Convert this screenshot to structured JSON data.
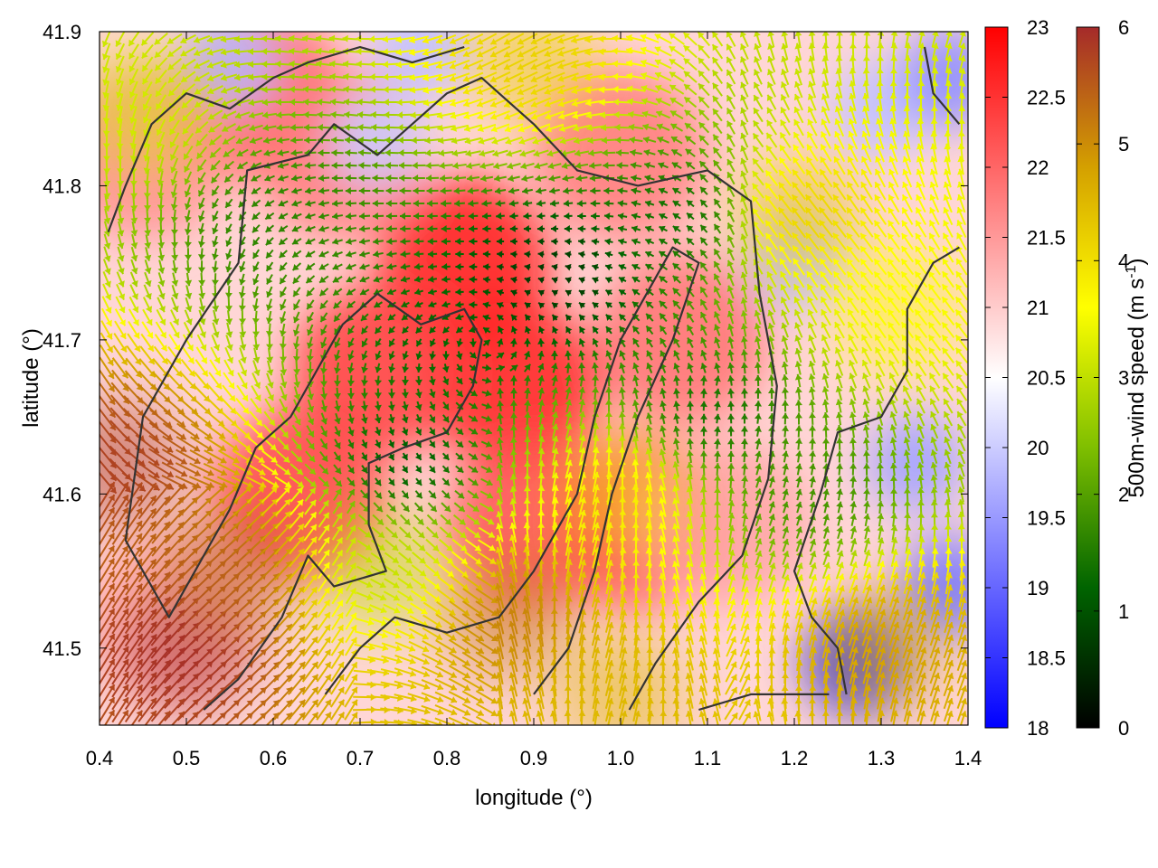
{
  "chart_data": {
    "type": "heatmap",
    "title": "",
    "xlabel": "longitude (°)",
    "ylabel": "latitude (°)",
    "xlim": [
      0.4,
      1.4
    ],
    "ylim": [
      41.45,
      41.9
    ],
    "x_ticks": [
      "0.4",
      "0.5",
      "0.6",
      "0.7",
      "0.8",
      "0.9",
      "1.0",
      "1.1",
      "1.2",
      "1.3",
      "1.4"
    ],
    "y_ticks": [
      "41.5",
      "41.6",
      "41.7",
      "41.8",
      "41.9"
    ],
    "colorbar_temperature": {
      "range": [
        18,
        23
      ],
      "ticks": [
        "18",
        "18.5",
        "19",
        "19.5",
        "20",
        "20.5",
        "21",
        "21.5",
        "22",
        "22.5",
        "23"
      ],
      "colors": [
        "#0000ff",
        "#ffffff",
        "#ff0000"
      ]
    },
    "colorbar_wind": {
      "label_main": "500m-wind speed (m s",
      "label_sup": "-1",
      "label_end": ")",
      "range": [
        0,
        6
      ],
      "ticks": [
        "0",
        "1",
        "2",
        "3",
        "4",
        "5",
        "6"
      ],
      "colors": [
        "#000000",
        "#006400",
        "#7fbf00",
        "#ffff00",
        "#d4a000",
        "#a52a2a"
      ]
    },
    "temperature_hotspots": [
      {
        "lon": 0.82,
        "lat": 41.75,
        "value": 22.8
      },
      {
        "lon": 0.88,
        "lat": 41.67,
        "value": 22.7
      },
      {
        "lon": 0.72,
        "lat": 41.68,
        "value": 22.4
      },
      {
        "lon": 0.63,
        "lat": 41.6,
        "value": 22.3
      },
      {
        "lon": 0.58,
        "lat": 41.86,
        "value": 22.1
      },
      {
        "lon": 0.9,
        "lat": 41.58,
        "value": 22.2
      },
      {
        "lon": 1.02,
        "lat": 41.58,
        "value": 22.2
      },
      {
        "lon": 1.0,
        "lat": 41.82,
        "value": 21.8
      },
      {
        "lon": 1.07,
        "lat": 41.7,
        "value": 21.9
      },
      {
        "lon": 0.45,
        "lat": 41.82,
        "value": 21.6
      },
      {
        "lon": 0.48,
        "lat": 41.52,
        "value": 21.3
      },
      {
        "lon": 1.12,
        "lat": 41.58,
        "value": 21.4
      },
      {
        "lon": 0.68,
        "lat": 41.82,
        "value": 21.8
      }
    ],
    "temperature_coldspots": [
      {
        "lon": 1.27,
        "lat": 41.49,
        "value": 18.6
      },
      {
        "lon": 1.34,
        "lat": 41.62,
        "value": 19.6
      },
      {
        "lon": 1.38,
        "lat": 41.54,
        "value": 19.2
      },
      {
        "lon": 1.2,
        "lat": 41.75,
        "value": 19.9
      },
      {
        "lon": 1.3,
        "lat": 41.85,
        "value": 19.9
      },
      {
        "lon": 0.55,
        "lat": 41.88,
        "value": 19.8
      },
      {
        "lon": 0.77,
        "lat": 41.89,
        "value": 19.9
      },
      {
        "lon": 1.38,
        "lat": 41.87,
        "value": 19.4
      },
      {
        "lon": 0.72,
        "lat": 41.83,
        "value": 20.0
      }
    ],
    "wind_regions": [
      {
        "lon": 0.8,
        "lat": 41.7,
        "speed": 1.2
      },
      {
        "lon": 0.92,
        "lat": 41.74,
        "speed": 0.6
      },
      {
        "lon": 0.75,
        "lat": 41.62,
        "speed": 1.0
      },
      {
        "lon": 0.6,
        "lat": 41.78,
        "speed": 1.6
      },
      {
        "lon": 1.08,
        "lat": 41.78,
        "speed": 1.2
      },
      {
        "lon": 1.1,
        "lat": 41.65,
        "speed": 1.3
      },
      {
        "lon": 1.22,
        "lat": 41.6,
        "speed": 1.8
      },
      {
        "lon": 0.5,
        "lat": 41.5,
        "speed": 6.0
      },
      {
        "lon": 0.42,
        "lat": 41.62,
        "speed": 5.8
      },
      {
        "lon": 0.55,
        "lat": 41.55,
        "speed": 5.5
      },
      {
        "lon": 0.87,
        "lat": 41.52,
        "speed": 5.2
      },
      {
        "lon": 1.3,
        "lat": 41.5,
        "speed": 4.8
      },
      {
        "lon": 1.0,
        "lat": 41.47,
        "speed": 4.5
      },
      {
        "lon": 1.2,
        "lat": 41.78,
        "speed": 4.3
      },
      {
        "lon": 0.9,
        "lat": 41.88,
        "speed": 4.2
      },
      {
        "lon": 1.32,
        "lat": 41.72,
        "speed": 3.6
      },
      {
        "lon": 0.45,
        "lat": 41.85,
        "speed": 3.2
      },
      {
        "lon": 0.72,
        "lat": 41.55,
        "speed": 3.0
      },
      {
        "lon": 1.0,
        "lat": 41.6,
        "speed": 4.0
      }
    ],
    "contours": [
      [
        [
          0.52,
          41.46
        ],
        [
          0.56,
          41.48
        ],
        [
          0.61,
          41.52
        ],
        [
          0.64,
          41.56
        ],
        [
          0.67,
          41.54
        ],
        [
          0.73,
          41.55
        ],
        [
          0.71,
          41.58
        ],
        [
          0.71,
          41.62
        ],
        [
          0.75,
          41.63
        ],
        [
          0.8,
          41.64
        ],
        [
          0.83,
          41.67
        ],
        [
          0.84,
          41.7
        ],
        [
          0.82,
          41.72
        ],
        [
          0.77,
          41.71
        ],
        [
          0.72,
          41.73
        ],
        [
          0.68,
          41.71
        ],
        [
          0.65,
          41.68
        ],
        [
          0.62,
          41.65
        ],
        [
          0.58,
          41.63
        ],
        [
          0.55,
          41.59
        ],
        [
          0.52,
          41.56
        ],
        [
          0.48,
          41.52
        ],
        [
          0.43,
          41.57
        ],
        [
          0.45,
          41.65
        ],
        [
          0.5,
          41.7
        ],
        [
          0.56,
          41.75
        ],
        [
          0.57,
          41.81
        ],
        [
          0.64,
          41.82
        ],
        [
          0.67,
          41.84
        ],
        [
          0.72,
          41.82
        ],
        [
          0.76,
          41.84
        ],
        [
          0.8,
          41.86
        ],
        [
          0.84,
          41.87
        ],
        [
          0.9,
          41.84
        ],
        [
          0.95,
          41.81
        ],
        [
          1.02,
          41.8
        ],
        [
          1.1,
          41.81
        ],
        [
          1.15,
          41.79
        ],
        [
          1.16,
          41.73
        ],
        [
          1.18,
          41.67
        ],
        [
          1.17,
          41.61
        ],
        [
          1.14,
          41.56
        ],
        [
          1.09,
          41.53
        ],
        [
          1.04,
          41.49
        ],
        [
          1.01,
          41.46
        ]
      ],
      [
        [
          0.41,
          41.77
        ],
        [
          0.43,
          41.8
        ],
        [
          0.46,
          41.84
        ],
        [
          0.5,
          41.86
        ],
        [
          0.55,
          41.85
        ],
        [
          0.6,
          41.87
        ],
        [
          0.64,
          41.88
        ],
        [
          0.7,
          41.89
        ],
        [
          0.76,
          41.88
        ],
        [
          0.82,
          41.89
        ]
      ],
      [
        [
          0.66,
          41.47
        ],
        [
          0.7,
          41.5
        ],
        [
          0.74,
          41.52
        ],
        [
          0.8,
          41.51
        ],
        [
          0.86,
          41.52
        ],
        [
          0.9,
          41.55
        ],
        [
          0.95,
          41.6
        ],
        [
          0.97,
          41.65
        ],
        [
          1.0,
          41.7
        ],
        [
          1.04,
          41.74
        ],
        [
          1.06,
          41.76
        ],
        [
          1.09,
          41.75
        ],
        [
          1.06,
          41.7
        ],
        [
          1.02,
          41.65
        ],
        [
          0.99,
          41.6
        ],
        [
          0.97,
          41.55
        ],
        [
          0.94,
          41.5
        ],
        [
          0.9,
          41.47
        ]
      ],
      [
        [
          1.26,
          41.47
        ],
        [
          1.25,
          41.5
        ],
        [
          1.22,
          41.52
        ],
        [
          1.2,
          41.55
        ],
        [
          1.23,
          41.6
        ],
        [
          1.25,
          41.64
        ],
        [
          1.3,
          41.65
        ],
        [
          1.33,
          41.68
        ],
        [
          1.33,
          41.72
        ],
        [
          1.36,
          41.75
        ],
        [
          1.39,
          41.76
        ]
      ],
      [
        [
          1.09,
          41.46
        ],
        [
          1.15,
          41.47
        ],
        [
          1.2,
          41.47
        ],
        [
          1.24,
          41.47
        ]
      ],
      [
        [
          1.35,
          41.89
        ],
        [
          1.36,
          41.86
        ],
        [
          1.39,
          41.84
        ]
      ]
    ]
  }
}
